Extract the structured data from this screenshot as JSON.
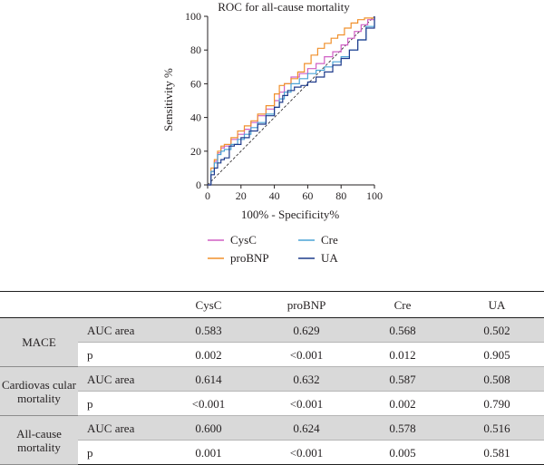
{
  "chart_data": {
    "type": "line",
    "title": "ROC for all-cause mortality",
    "xlabel": "100% - Specificity%",
    "ylabel": "Sensitivity %",
    "xlim": [
      0,
      100
    ],
    "ylim": [
      0,
      100
    ],
    "xticks": [
      "0",
      "20",
      "40",
      "60",
      "80",
      "100"
    ],
    "yticks": [
      "0",
      "20",
      "40",
      "60",
      "80",
      "100"
    ],
    "grid": false,
    "legend_position": "bottom",
    "reference_line": true,
    "series": [
      {
        "name": "CysC",
        "color": "#d05fc4",
        "x": [
          0,
          2,
          4,
          6,
          8,
          10,
          14,
          18,
          22,
          26,
          30,
          35,
          40,
          43,
          46,
          50,
          55,
          60,
          65,
          70,
          75,
          80,
          84,
          88,
          92,
          96,
          100
        ],
        "y": [
          0,
          8,
          14,
          19,
          22,
          23,
          27,
          30,
          33,
          37,
          41,
          45,
          50,
          55,
          60,
          64,
          66,
          69,
          72,
          76,
          79,
          83,
          87,
          91,
          95,
          98,
          100
        ]
      },
      {
        "name": "proBNP",
        "color": "#f0902c",
        "x": [
          0,
          2,
          4,
          6,
          8,
          10,
          14,
          18,
          22,
          26,
          30,
          35,
          40,
          43,
          46,
          50,
          54,
          58,
          62,
          66,
          70,
          74,
          78,
          82,
          86,
          90,
          94,
          100
        ],
        "y": [
          0,
          10,
          15,
          20,
          23,
          24,
          28,
          32,
          35,
          38,
          42,
          47,
          54,
          59,
          60,
          63,
          67,
          72,
          77,
          81,
          84,
          87,
          89,
          93,
          96,
          98,
          99,
          100
        ]
      },
      {
        "name": "Cre",
        "color": "#4aa3d6",
        "x": [
          0,
          2,
          4,
          6,
          8,
          10,
          14,
          18,
          22,
          26,
          30,
          35,
          40,
          43,
          46,
          50,
          55,
          60,
          65,
          70,
          75,
          80,
          85,
          90,
          95,
          100
        ],
        "y": [
          0,
          8,
          13,
          18,
          20,
          21,
          24,
          27,
          30,
          34,
          37,
          42,
          46,
          51,
          55,
          60,
          63,
          66,
          68,
          70,
          73,
          76,
          80,
          86,
          94,
          100
        ]
      },
      {
        "name": "UA",
        "color": "#1f3b8c",
        "x": [
          0,
          2,
          4,
          6,
          8,
          10,
          13,
          16,
          20,
          25,
          30,
          35,
          40,
          43,
          45,
          48,
          52,
          56,
          60,
          65,
          70,
          75,
          80,
          85,
          90,
          95,
          100
        ],
        "y": [
          0,
          6,
          10,
          13,
          15,
          16,
          23,
          24,
          28,
          32,
          36,
          41,
          46,
          49,
          53,
          56,
          58,
          59,
          61,
          64,
          67,
          71,
          75,
          80,
          86,
          93,
          100
        ]
      }
    ]
  },
  "table": {
    "headers": [
      "",
      "",
      "CysC",
      "proBNP",
      "Cre",
      "UA"
    ],
    "groups": [
      {
        "label": "MACE",
        "rows": [
          {
            "metric": "AUC area",
            "values": [
              "0.583",
              "0.629",
              "0.568",
              "0.502"
            ]
          },
          {
            "metric": "p",
            "values": [
              "0.002",
              "<0.001",
              "0.012",
              "0.905"
            ]
          }
        ]
      },
      {
        "label": "Cardiovas cular mortality",
        "rows": [
          {
            "metric": "AUC area",
            "values": [
              "0.614",
              "0.632",
              "0.587",
              "0.508"
            ]
          },
          {
            "metric": "p",
            "values": [
              "<0.001",
              "<0.001",
              "0.002",
              "0.790"
            ]
          }
        ]
      },
      {
        "label": "All-cause mortality",
        "rows": [
          {
            "metric": "AUC area",
            "values": [
              "0.600",
              "0.624",
              "0.578",
              "0.516"
            ]
          },
          {
            "metric": "p",
            "values": [
              "0.001",
              "<0.001",
              "0.005",
              "0.581"
            ]
          }
        ]
      }
    ]
  }
}
